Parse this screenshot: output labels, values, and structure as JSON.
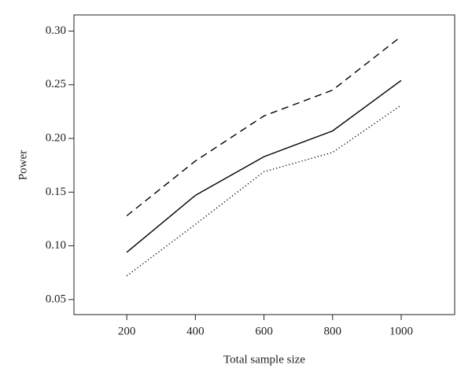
{
  "chart_data": {
    "type": "line",
    "x_label": "Total sample size",
    "y_label": "Power",
    "x": [
      200,
      400,
      600,
      800,
      1000
    ],
    "series": [
      {
        "color": "#000000",
        "dash": "dashed",
        "values": [
          0.128,
          0.179,
          0.221,
          0.245,
          0.295
        ]
      },
      {
        "color": "#000000",
        "dash": "solid",
        "values": [
          0.094,
          0.147,
          0.183,
          0.207,
          0.254
        ]
      },
      {
        "color": "#000000",
        "dash": "dotted",
        "values": [
          0.072,
          0.12,
          0.169,
          0.187,
          0.231
        ]
      }
    ],
    "xlim": [
      46,
      1156
    ],
    "xticks": [
      200,
      400,
      600,
      800,
      1000
    ],
    "ylim": [
      0.036,
      0.315
    ],
    "yticks": [
      {
        "value": 0.05,
        "label": "0.05"
      },
      {
        "value": 0.1,
        "label": "0.10"
      },
      {
        "value": 0.15,
        "label": "0.15"
      },
      {
        "value": 0.2,
        "label": "0.20"
      },
      {
        "value": 0.25,
        "label": "0.25"
      },
      {
        "value": 0.3,
        "label": "0.30"
      }
    ],
    "grid": false
  }
}
